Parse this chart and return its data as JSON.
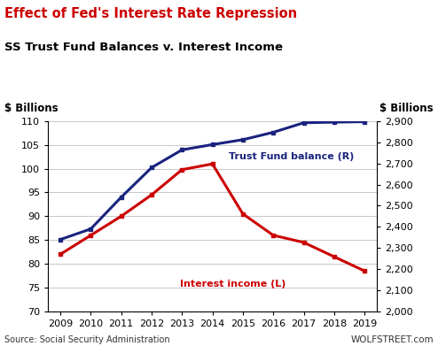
{
  "title1": "Effect of Fed's Interest Rate Repression",
  "title2": "SS Trust Fund Balances v. Interest Income",
  "title1_color": "#cc0000",
  "title2_color": "#000000",
  "ylabel_left": "$ Billions",
  "ylabel_right": "$ Billions",
  "source_left": "Source: Social Security Administration",
  "source_right": "WOLFSTREET.com",
  "years": [
    2009,
    2010,
    2011,
    2012,
    2013,
    2014,
    2015,
    2016,
    2017,
    2018,
    2019
  ],
  "interest_income": [
    82,
    86,
    90,
    94.5,
    99.8,
    101,
    90.5,
    86,
    84.5,
    81.5,
    78.5
  ],
  "trust_fund_right": [
    2340,
    2390,
    2540,
    2680,
    2764,
    2789,
    2812,
    2847,
    2892,
    2895,
    2897
  ],
  "left_ylim": [
    70,
    110
  ],
  "left_yticks": [
    70,
    75,
    80,
    85,
    90,
    95,
    100,
    105,
    110
  ],
  "right_ylim": [
    2000,
    2900
  ],
  "right_yticks": [
    2000,
    2100,
    2200,
    2300,
    2400,
    2500,
    2600,
    2700,
    2800,
    2900
  ],
  "interest_color": "#cc0000",
  "trust_color": "#1a237e",
  "interest_label": "Interest income (L)",
  "trust_label": "Trust Fund balance (R)",
  "bg_color": "#ffffff",
  "grid_color": "#c8c8c8"
}
